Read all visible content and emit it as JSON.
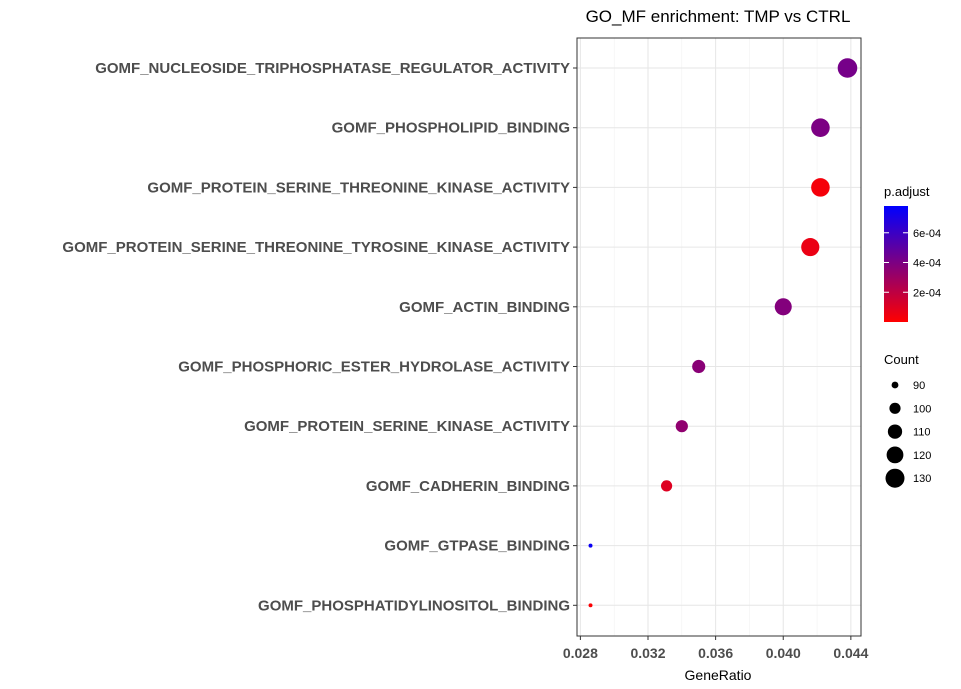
{
  "chart_data": {
    "type": "scatter",
    "title": "GO_MF enrichment: TMP vs CTRL",
    "xlabel": "GeneRatio",
    "ylabel": "",
    "xlim": [
      0.0278,
      0.0446
    ],
    "xticks": [
      0.028,
      0.032,
      0.036,
      0.04,
      0.044
    ],
    "xtick_labels": [
      "0.028",
      "0.032",
      "0.036",
      "0.040",
      "0.044"
    ],
    "grid": true,
    "categories": [
      "GOMF_NUCLEOSIDE_TRIPHOSPHATASE_REGULATOR_ACTIVITY",
      "GOMF_PHOSPHOLIPID_BINDING",
      "GOMF_PROTEIN_SERINE_THREONINE_KINASE_ACTIVITY",
      "GOMF_PROTEIN_SERINE_THREONINE_TYROSINE_KINASE_ACTIVITY",
      "GOMF_ACTIN_BINDING",
      "GOMF_PHOSPHORIC_ESTER_HYDROLASE_ACTIVITY",
      "GOMF_PROTEIN_SERINE_KINASE_ACTIVITY",
      "GOMF_CADHERIN_BINDING",
      "GOMF_GTPASE_BINDING",
      "GOMF_PHOSPHATIDYLINOSITOL_BINDING"
    ],
    "points": [
      {
        "x": 0.0438,
        "count": 133,
        "p_adjust": 0.00042
      },
      {
        "x": 0.0422,
        "count": 128,
        "p_adjust": 0.0004
      },
      {
        "x": 0.0422,
        "count": 128,
        "p_adjust": 3e-05
      },
      {
        "x": 0.0416,
        "count": 126,
        "p_adjust": 6e-05
      },
      {
        "x": 0.04,
        "count": 121,
        "p_adjust": 0.00038
      },
      {
        "x": 0.035,
        "count": 106,
        "p_adjust": 0.00036
      },
      {
        "x": 0.034,
        "count": 103,
        "p_adjust": 0.00034
      },
      {
        "x": 0.0331,
        "count": 100,
        "p_adjust": 0.0001
      },
      {
        "x": 0.0286,
        "count": 86,
        "p_adjust": 0.00075
      },
      {
        "x": 0.0286,
        "count": 86,
        "p_adjust": 1e-05
      }
    ],
    "legend": {
      "placement": "right",
      "color_title": "p.adjust",
      "color_ticks": [
        0.0006,
        0.0004,
        0.0002
      ],
      "color_tick_labels": [
        "6e-04",
        "4e-04",
        "2e-04"
      ],
      "color_range": [
        0.0,
        0.00078
      ],
      "color_low": "#ff0000",
      "color_high": "#0000ff",
      "size_title": "Count",
      "size_values": [
        90,
        100,
        110,
        120,
        130
      ],
      "size_labels": [
        "90",
        "100",
        "110",
        "120",
        "130"
      ]
    }
  }
}
